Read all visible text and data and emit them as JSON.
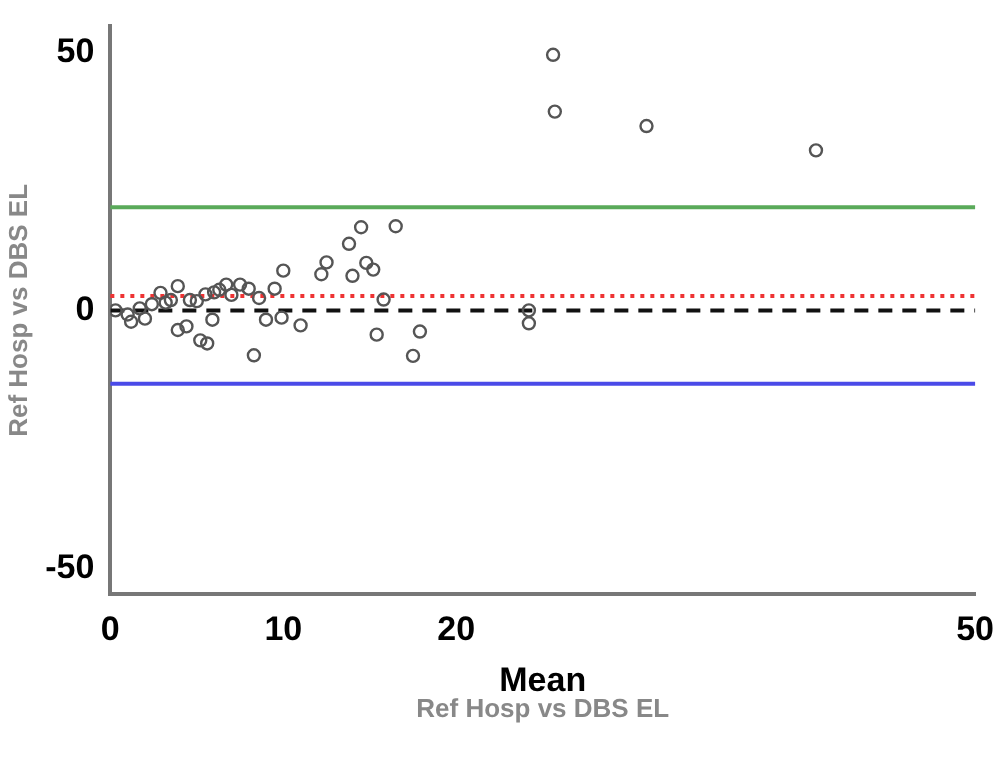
{
  "chart_data": {
    "type": "scatter",
    "xlabel": "Mean",
    "ylabel": "Ref Hosp vs DBS EL",
    "annotations": [
      "Ref Hosp vs DBS EL"
    ],
    "xlim": [
      0,
      50
    ],
    "ylim": [
      -55,
      55
    ],
    "xticks": [
      0,
      10,
      20,
      50
    ],
    "yticks": [
      -50,
      0,
      50
    ],
    "grid": false,
    "legend": false,
    "marker": "circle",
    "series": [
      {
        "color": "#555555",
        "x": [
          0.3,
          1.0,
          1.7,
          2.4,
          1.2,
          2.0,
          2.9,
          3.2,
          3.5,
          3.9,
          3.9,
          4.4,
          4.6,
          5.0,
          5.2,
          5.5,
          5.6,
          5.9,
          6.0,
          6.3,
          6.7,
          7.0,
          7.5,
          8.0,
          8.3,
          8.6,
          9.0,
          9.5,
          9.9,
          10.0,
          11.0,
          12.2,
          12.5,
          13.8,
          14.0,
          14.5,
          14.8,
          15.2,
          15.4,
          15.8,
          16.5,
          17.5,
          17.9,
          24.2,
          24.2,
          25.6,
          25.7,
          31.0,
          40.8
        ],
        "values": [
          0,
          -0.8,
          0.4,
          1.2,
          -2.2,
          -1.6,
          3.4,
          1.5,
          2.0,
          4.7,
          -3.8,
          -3.1,
          2.0,
          1.8,
          -5.8,
          3.1,
          -6.4,
          -1.8,
          3.5,
          4.0,
          5.0,
          3.0,
          5.0,
          4.2,
          -8.7,
          2.4,
          -1.8,
          4.2,
          -1.4,
          7.7,
          -2.9,
          7.0,
          9.3,
          12.9,
          6.7,
          16.1,
          9.2,
          7.9,
          -4.7,
          2.1,
          16.3,
          -8.8,
          -4.1,
          -2.5,
          0,
          49.5,
          38.5,
          35.7,
          31.0
        ]
      }
    ],
    "ref_lines": [
      {
        "axis": "y",
        "value": 20,
        "label": null,
        "color": "#5aaa5a",
        "line_style": "solid"
      },
      {
        "axis": "y",
        "value": 2.8,
        "label": null,
        "color": "#ee3333",
        "line_style": "dotted"
      },
      {
        "axis": "y",
        "value": 0,
        "label": null,
        "color": "#111111",
        "line_style": "dashed"
      },
      {
        "axis": "y",
        "value": -14.2,
        "label": null,
        "color": "#4a4ae8",
        "line_style": "solid"
      }
    ]
  }
}
